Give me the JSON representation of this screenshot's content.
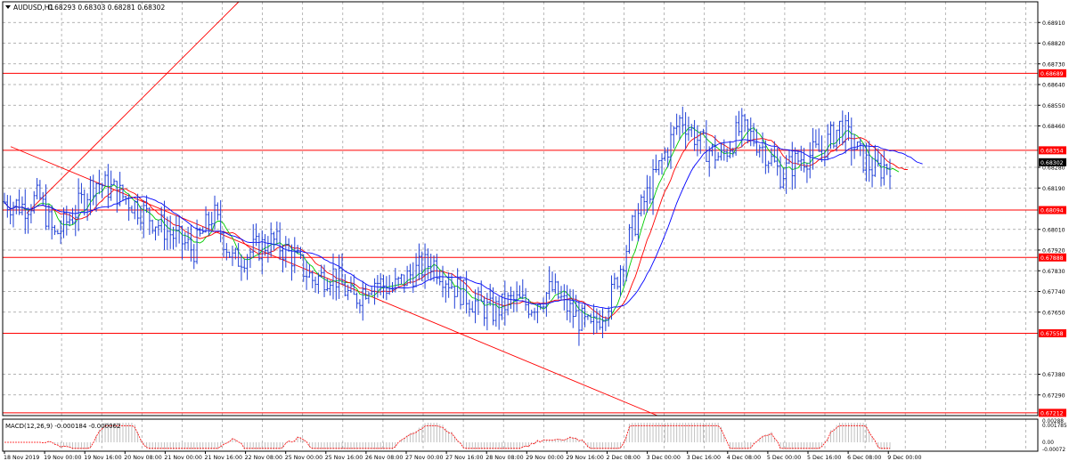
{
  "header": {
    "symbol_label": "AUDUSD,H1",
    "ohlc_label": "0.68293 0.68303 0.68281 0.68302"
  },
  "indicator": {
    "macd_label": "MACD(12,26,9) -0.000184 -0.000062",
    "ticks": [
      "0.00288",
      "0.001785",
      "0.00",
      "-0.00072"
    ]
  },
  "colors": {
    "background": "#ffffff",
    "grid": "#9a9a9a",
    "candles": "#1f3fd6",
    "level_line": "#ff0000",
    "trend_line": "#ff0000",
    "ma_fast": "#00cc00",
    "ma_mid": "#ff0000",
    "ma_slow": "#0000ff",
    "macd_hist": "#c0c0c0",
    "macd_signal": "#ff0000"
  },
  "chart_data": {
    "type": "candlestick",
    "symbol": "AUDUSD",
    "timeframe": "H1",
    "y_range": [
      0.672,
      0.69
    ],
    "price_axis_ticks": [
      "0.68910",
      "0.68820",
      "0.68730",
      "0.68640",
      "0.68550",
      "0.68460",
      "0.68280",
      "0.68190",
      "0.68010",
      "0.67920",
      "0.67830",
      "0.67740",
      "0.67650",
      "0.67380",
      "0.67290"
    ],
    "level_lines": [
      {
        "label": "0.68689",
        "value": 0.68689
      },
      {
        "label": "0.68354",
        "value": 0.68354
      },
      {
        "label": "0.68094",
        "value": 0.68094
      },
      {
        "label": "0.67888",
        "value": 0.67888
      },
      {
        "label": "0.67558",
        "value": 0.67558
      },
      {
        "label": "0.67212",
        "value": 0.67212
      }
    ],
    "current_price": {
      "label": "0.68302",
      "value": 0.68302
    },
    "x_labels": [
      "18 Nov 2019",
      "19 Nov 00:00",
      "19 Nov 16:00",
      "20 Nov 08:00",
      "21 Nov 00:00",
      "21 Nov 16:00",
      "22 Nov 08:00",
      "25 Nov 00:00",
      "25 Nov 16:00",
      "26 Nov 08:00",
      "27 Nov 00:00",
      "27 Nov 16:00",
      "28 Nov 08:00",
      "29 Nov 00:00",
      "29 Nov 16:00",
      "2 Dec 08:00",
      "3 Dec 00:00",
      "3 Dec 16:00",
      "4 Dec 08:00",
      "5 Dec 00:00",
      "5 Dec 16:00",
      "6 Dec 08:00",
      "9 Dec 00:00"
    ],
    "price_path": [
      [
        0,
        0.6813
      ],
      [
        0.02,
        0.6811
      ],
      [
        0.035,
        0.6815
      ],
      [
        0.05,
        0.6798
      ],
      [
        0.07,
        0.6808
      ],
      [
        0.09,
        0.6822
      ],
      [
        0.11,
        0.6818
      ],
      [
        0.13,
        0.6812
      ],
      [
        0.15,
        0.6805
      ],
      [
        0.17,
        0.6798
      ],
      [
        0.19,
        0.6792
      ],
      [
        0.21,
        0.6808
      ],
      [
        0.23,
        0.6787
      ],
      [
        0.25,
        0.6792
      ],
      [
        0.27,
        0.6796
      ],
      [
        0.29,
        0.6789
      ],
      [
        0.31,
        0.6779
      ],
      [
        0.33,
        0.6782
      ],
      [
        0.35,
        0.677
      ],
      [
        0.37,
        0.6779
      ],
      [
        0.39,
        0.6775
      ],
      [
        0.41,
        0.6782
      ],
      [
        0.43,
        0.6787
      ],
      [
        0.45,
        0.6777
      ],
      [
        0.47,
        0.677
      ],
      [
        0.49,
        0.6765
      ],
      [
        0.51,
        0.677
      ],
      [
        0.53,
        0.6768
      ],
      [
        0.55,
        0.6775
      ],
      [
        0.57,
        0.6765
      ],
      [
        0.59,
        0.6757
      ],
      [
        0.61,
        0.6772
      ],
      [
        0.63,
        0.68
      ],
      [
        0.65,
        0.682
      ],
      [
        0.665,
        0.6835
      ],
      [
        0.68,
        0.685
      ],
      [
        0.7,
        0.6838
      ],
      [
        0.72,
        0.6832
      ],
      [
        0.74,
        0.6845
      ],
      [
        0.76,
        0.6838
      ],
      [
        0.78,
        0.6825
      ],
      [
        0.8,
        0.6832
      ],
      [
        0.82,
        0.6835
      ],
      [
        0.84,
        0.6846
      ],
      [
        0.86,
        0.6833
      ],
      [
        0.875,
        0.6826
      ],
      [
        0.89,
        0.683
      ]
    ]
  }
}
